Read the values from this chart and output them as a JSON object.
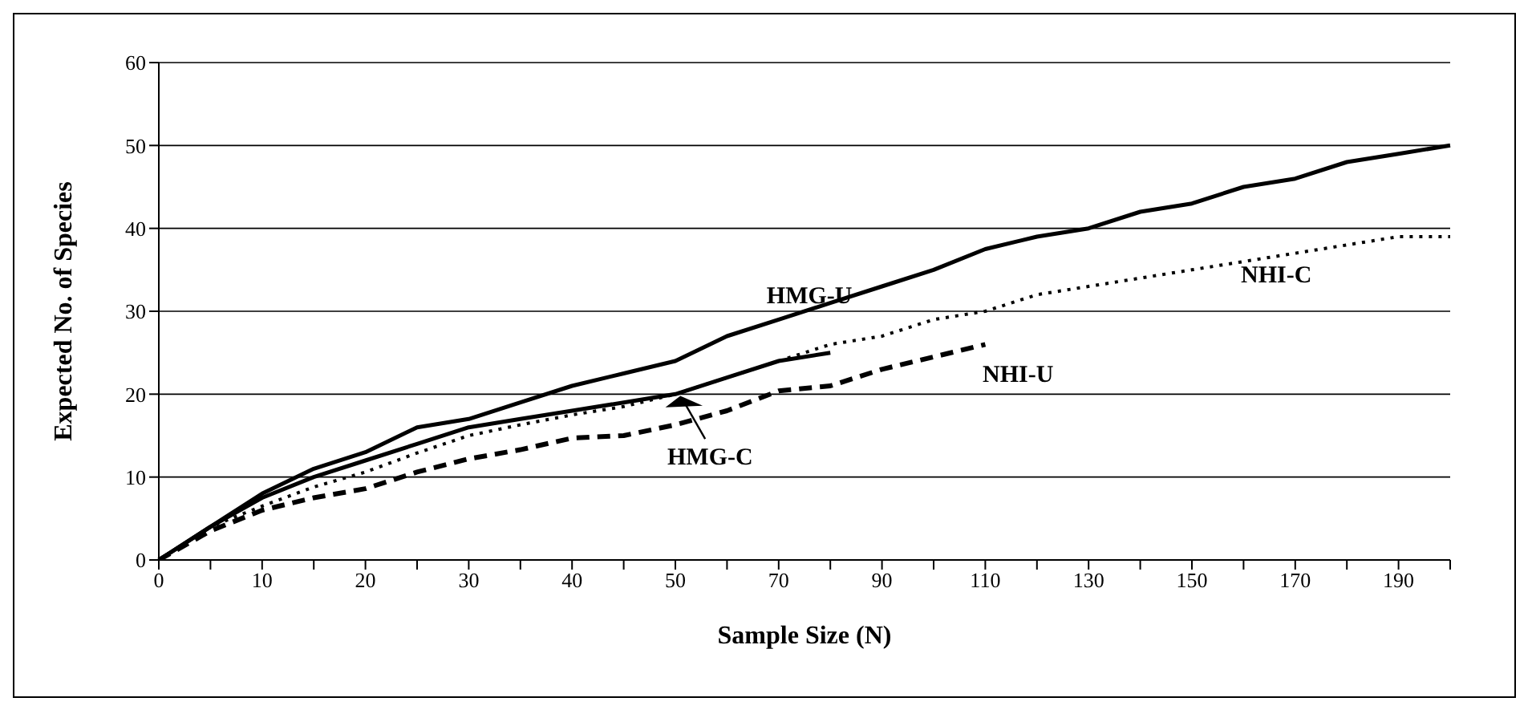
{
  "chart_data": {
    "type": "line",
    "xlabel": "Sample Size (N)",
    "ylabel": "Expected No. of Species",
    "categories": [
      "0",
      null,
      "10",
      null,
      "20",
      null,
      "30",
      null,
      "40",
      null,
      "50",
      null,
      "70",
      null,
      "90",
      null,
      "110",
      null,
      "130",
      null,
      "150",
      null,
      "170",
      null,
      "190",
      null
    ],
    "series": [
      {
        "name": "HMG-U",
        "color": "#000000",
        "line_style": "solid",
        "values": [
          0,
          4,
          8,
          11,
          13,
          16,
          17,
          19,
          21,
          22.5,
          24,
          27,
          29,
          31,
          33,
          35,
          37.5,
          39,
          40,
          42,
          43,
          45,
          46,
          48,
          49,
          50
        ]
      },
      {
        "name": "NHI-C",
        "color": "#000000",
        "line_style": "dotted",
        "values": [
          0,
          4,
          6.5,
          8.8,
          10.6,
          12.9,
          15,
          16.3,
          17.5,
          18.5,
          20,
          22,
          24,
          26,
          27,
          29,
          30,
          32,
          33,
          34,
          35,
          36,
          37,
          38,
          39,
          39
        ]
      },
      {
        "name": "HMG-C",
        "color": "#000000",
        "line_style": "solid",
        "values": [
          0,
          4,
          7.5,
          10,
          12,
          14,
          16,
          17,
          18,
          19,
          20,
          22,
          24,
          25,
          null,
          null,
          null,
          null,
          null,
          null,
          null,
          null,
          null,
          null,
          null,
          null
        ]
      },
      {
        "name": "NHI-U",
        "color": "#000000",
        "line_style": "dashed",
        "values": [
          0,
          3.5,
          6,
          7.5,
          8.6,
          10.6,
          12.2,
          13.3,
          14.7,
          15,
          16.3,
          18,
          20.4,
          21,
          23,
          24.5,
          26,
          null,
          null,
          null,
          null,
          null,
          null,
          null,
          null,
          null
        ]
      }
    ],
    "ylim": [
      0,
      60
    ],
    "yticks": [
      0,
      10,
      20,
      30,
      40,
      50,
      60
    ],
    "grid": "y",
    "marker": "none"
  }
}
